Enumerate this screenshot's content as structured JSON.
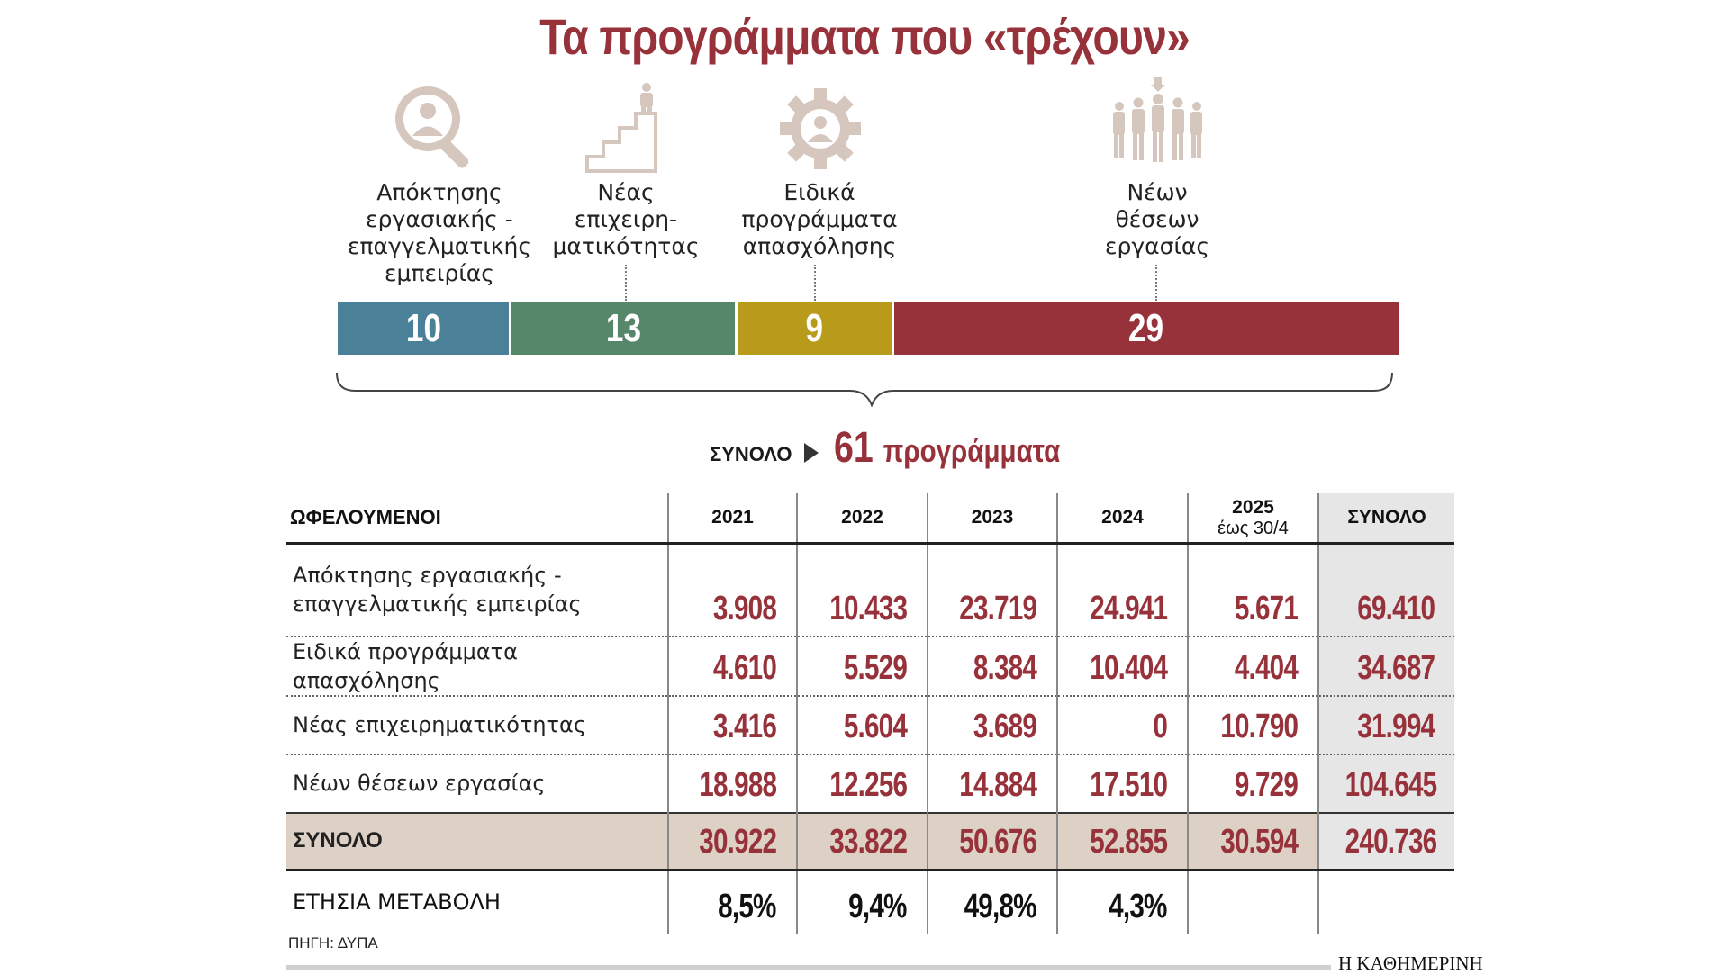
{
  "title": "Τα προγράμματα που «τρέχουν»",
  "colors": {
    "accent": "#97313a",
    "blue": "#4a8199",
    "green": "#56876a",
    "gold": "#b89b1a",
    "red": "#97313a",
    "icon": "#d5c7bd"
  },
  "categories": [
    {
      "icon": "search-person-icon",
      "label_lines": [
        "Απόκτησης",
        "εργασιακής -",
        "επαγγελματικής",
        "εμπειρίας"
      ]
    },
    {
      "icon": "stairs-person-icon",
      "label_lines": [
        "Νέας",
        "επιχειρη-",
        "ματικότητας"
      ]
    },
    {
      "icon": "gear-person-icon",
      "label_lines": [
        "Ειδικά",
        "προγράμματα",
        "απασχόλησης"
      ]
    },
    {
      "icon": "group-people-icon",
      "label_lines": [
        "Νέων",
        "θέσεων",
        "εργασίας"
      ]
    }
  ],
  "chart_data": {
    "type": "bar",
    "title": "Τα προγράμματα που «τρέχουν»",
    "categories": [
      "Απόκτησης εργασιακής - επαγγελματικής εμπειρίας",
      "Νέας επιχειρηματικότητας",
      "Ειδικά προγράμματα απασχόλησης",
      "Νέων θέσεων εργασίας"
    ],
    "values": [
      10,
      13,
      9,
      29
    ],
    "stacked": true,
    "total_label": "ΣΥΝΟΛΟ",
    "total_value": "61",
    "total_unit": "προγράμματα"
  },
  "table": {
    "header_label": "ΩΦΕΛΟΥΜΕΝΟΙ",
    "columns": [
      {
        "label": "2021"
      },
      {
        "label": "2022"
      },
      {
        "label": "2023"
      },
      {
        "label": "2024"
      },
      {
        "label": "2025",
        "sub": "έως 30/4"
      },
      {
        "label": "ΣΥΝΟΛΟ"
      }
    ],
    "rows": [
      {
        "label_lines": [
          "Απόκτησης εργασιακής -",
          "επαγγελματικής εμπειρίας"
        ],
        "values": [
          "3.908",
          "10.433",
          "23.719",
          "24.941",
          "5.671",
          "69.410"
        ]
      },
      {
        "label_lines": [
          "Ειδικά προγράμματα απασχόλησης"
        ],
        "values": [
          "4.610",
          "5.529",
          "8.384",
          "10.404",
          "4.404",
          "34.687"
        ]
      },
      {
        "label_lines": [
          "Νέας επιχειρηματικότητας"
        ],
        "values": [
          "3.416",
          "5.604",
          "3.689",
          "0",
          "10.790",
          "31.994"
        ]
      },
      {
        "label_lines": [
          "Νέων θέσεων εργασίας"
        ],
        "values": [
          "18.988",
          "12.256",
          "14.884",
          "17.510",
          "9.729",
          "104.645"
        ]
      }
    ],
    "total_row": {
      "label": "ΣΥΝΟΛΟ",
      "values": [
        "30.922",
        "33.822",
        "50.676",
        "52.855",
        "30.594",
        "240.736"
      ]
    },
    "change_row": {
      "label": "ΕΤΗΣΙΑ ΜΕΤΑΒΟΛΗ",
      "values": [
        "8,5%",
        "9,4%",
        "49,8%",
        "4,3%",
        "",
        ""
      ]
    }
  },
  "source": "ΠΗΓΗ: ΔΥΠΑ",
  "brand": "Η ΚΑΘΗΜΕΡΙΝΗ"
}
